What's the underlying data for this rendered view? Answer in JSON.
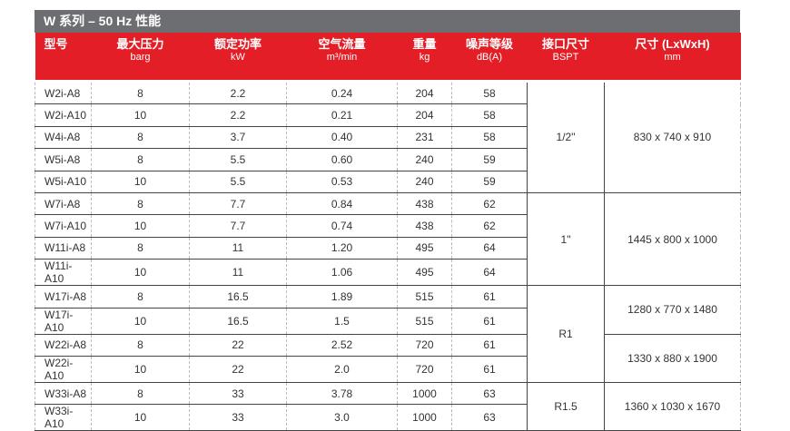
{
  "title": "W 系列 – 50 Hz 性能",
  "headers": [
    {
      "label": "型号",
      "unit": ""
    },
    {
      "label": "最大压力",
      "unit": "barg"
    },
    {
      "label": "额定功率",
      "unit": "kW"
    },
    {
      "label": "空气流量",
      "unit": "m³/min"
    },
    {
      "label": "重量",
      "unit": "kg"
    },
    {
      "label": "噪声等级",
      "unit": "dB(A)"
    },
    {
      "label": "接口尺寸",
      "unit": "BSPT"
    },
    {
      "label": "尺寸 (LxWxH)",
      "unit": "mm"
    }
  ],
  "rows": [
    [
      "W2i-A8",
      "8",
      "2.2",
      "0.24",
      "204",
      "58"
    ],
    [
      "W2i-A10",
      "10",
      "2.2",
      "0.21",
      "204",
      "58"
    ],
    [
      "W4i-A8",
      "8",
      "3.7",
      "0.40",
      "231",
      "58"
    ],
    [
      "W5i-A8",
      "8",
      "5.5",
      "0.60",
      "240",
      "59"
    ],
    [
      "W5i-A10",
      "10",
      "5.5",
      "0.53",
      "240",
      "59"
    ],
    [
      "W7i-A8",
      "8",
      "7.7",
      "0.84",
      "438",
      "62"
    ],
    [
      "W7i-A10",
      "10",
      "7.7",
      "0.74",
      "438",
      "62"
    ],
    [
      "W11i-A8",
      "8",
      "11",
      "1.20",
      "495",
      "64"
    ],
    [
      "W11i-A10",
      "10",
      "11",
      "1.06",
      "495",
      "64"
    ],
    [
      "W17i-A8",
      "8",
      "16.5",
      "1.89",
      "515",
      "61"
    ],
    [
      "W17i-A10",
      "10",
      "16.5",
      "1.5",
      "515",
      "61"
    ],
    [
      "W22i-A8",
      "8",
      "22",
      "2.52",
      "720",
      "61"
    ],
    [
      "W22i-A10",
      "10",
      "22",
      "2.0",
      "720",
      "61"
    ],
    [
      "W33i-A8",
      "8",
      "33",
      "3.78",
      "1000",
      "63"
    ],
    [
      "W33i-A10",
      "10",
      "33",
      "3.0",
      "1000",
      "63"
    ]
  ],
  "connections": [
    {
      "value": "1/2\"",
      "span": 5
    },
    {
      "value": "1\"",
      "span": 4
    },
    {
      "value": "R1",
      "span": 4
    },
    {
      "value": "R1.5",
      "span": 2
    }
  ],
  "dimensions": [
    {
      "value": "830 x 740 x 910",
      "span": 5
    },
    {
      "value": "1445 x 800 x 1000",
      "span": 4
    },
    {
      "value": "1280 x 770 x 1480",
      "span": 2
    },
    {
      "value": "1330 x 880 x 1900",
      "span": 2
    },
    {
      "value": "1360 x 1030 x 1670",
      "span": 2
    }
  ]
}
